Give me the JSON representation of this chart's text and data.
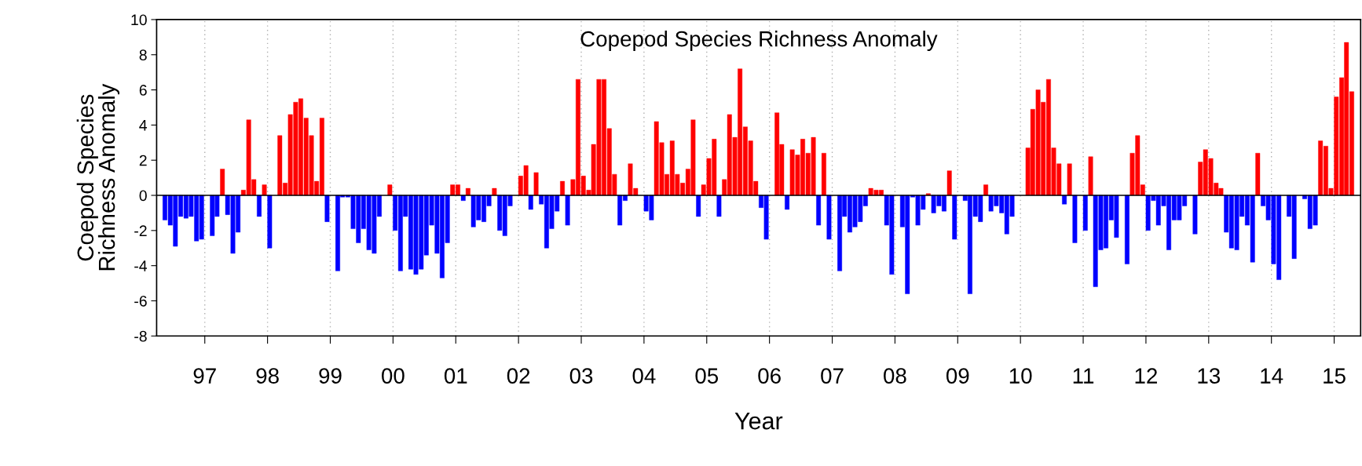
{
  "chart_data": {
    "type": "bar",
    "title": "Copepod Species Richness Anomaly",
    "xlabel": "Year",
    "ylabel": "Coepod Species\nRichness Anomaly",
    "xlim": [
      "1996-03-26",
      "2015-06-04"
    ],
    "xticks": [
      {
        "value": "1997",
        "label": "97"
      },
      {
        "value": "1998",
        "label": "98"
      },
      {
        "value": "1999",
        "label": "99"
      },
      {
        "value": "2000",
        "label": "00"
      },
      {
        "value": "2001",
        "label": "01"
      },
      {
        "value": "2002",
        "label": "02"
      },
      {
        "value": "2003",
        "label": "03"
      },
      {
        "value": "2004",
        "label": "04"
      },
      {
        "value": "2005",
        "label": "05"
      },
      {
        "value": "2006",
        "label": "06"
      },
      {
        "value": "2007",
        "label": "07"
      },
      {
        "value": "2008",
        "label": "08"
      },
      {
        "value": "2009",
        "label": "09"
      },
      {
        "value": "2010",
        "label": "10"
      },
      {
        "value": "2011",
        "label": "11"
      },
      {
        "value": "2012",
        "label": "12"
      },
      {
        "value": "2013",
        "label": "13"
      },
      {
        "value": "2014",
        "label": "14"
      },
      {
        "value": "2015",
        "label": "15"
      }
    ],
    "ylim": [
      -8,
      10
    ],
    "yticks": [
      -8,
      -6,
      -4,
      -2,
      0,
      2,
      4,
      6,
      8,
      10
    ],
    "grid": "x",
    "ref_lines": [
      {
        "axis": "y",
        "value": 0,
        "color": "#000000"
      }
    ],
    "series": [
      {
        "color": "#ff0000",
        "x": [
          "1997-04",
          "1997-08",
          "1997-09",
          "1997-10",
          "1997-12",
          "1998-03",
          "1998-04",
          "1998-05",
          "1998-06",
          "1998-07",
          "1998-08",
          "1998-09",
          "1998-10",
          "1998-11",
          "1999-12",
          "2000-12",
          "2001-01",
          "2001-03",
          "2001-08",
          "2002-01",
          "2002-02",
          "2002-04",
          "2002-09",
          "2002-11",
          "2002-12",
          "2003-01",
          "2003-02",
          "2003-03",
          "2003-04",
          "2003-05",
          "2003-06",
          "2003-07",
          "2003-10",
          "2003-11",
          "2004-03",
          "2004-04",
          "2004-05",
          "2004-06",
          "2004-07",
          "2004-08",
          "2004-09",
          "2004-10",
          "2004-12",
          "2005-01",
          "2005-02",
          "2005-04",
          "2005-05",
          "2005-06",
          "2005-07",
          "2005-08",
          "2005-09",
          "2005-10",
          "2006-02",
          "2006-03",
          "2006-05",
          "2006-06",
          "2006-07",
          "2006-08",
          "2006-09",
          "2006-11",
          "2007-08",
          "2007-09",
          "2007-10",
          "2008-07",
          "2008-11",
          "2009-06",
          "2010-02",
          "2010-03",
          "2010-04",
          "2010-05",
          "2010-06",
          "2010-07",
          "2010-08",
          "2010-10",
          "2011-02",
          "2011-10",
          "2011-11",
          "2011-12",
          "2012-11",
          "2012-12",
          "2013-01",
          "2013-02",
          "2013-03",
          "2013-10",
          "2014-10",
          "2014-11",
          "2014-12",
          "2015-01",
          "2015-02",
          "2015-03",
          "2015-04"
        ],
        "values": [
          1.5,
          0.3,
          4.3,
          0.9,
          0.6,
          3.4,
          0.7,
          4.6,
          5.3,
          5.5,
          4.4,
          3.4,
          0.8,
          4.4,
          0.6,
          0.6,
          0.6,
          0.4,
          0.4,
          1.1,
          1.7,
          1.3,
          0.8,
          0.9,
          6.6,
          1.1,
          0.3,
          2.9,
          6.6,
          6.6,
          3.8,
          1.2,
          1.8,
          0.4,
          4.2,
          3.0,
          1.2,
          3.1,
          1.2,
          0.7,
          1.5,
          4.3,
          0.6,
          2.1,
          3.2,
          0.9,
          4.6,
          3.3,
          7.2,
          3.9,
          3.1,
          0.8,
          4.7,
          2.9,
          2.6,
          2.3,
          3.2,
          2.4,
          3.3,
          2.4,
          0.4,
          0.3,
          0.3,
          0.1,
          1.4,
          0.6,
          2.7,
          4.9,
          6.0,
          5.3,
          6.6,
          2.7,
          1.8,
          1.8,
          2.2,
          2.4,
          3.4,
          0.6,
          1.9,
          2.6,
          2.1,
          0.7,
          0.4,
          2.4,
          3.1,
          2.8,
          0.4,
          5.6,
          6.7,
          8.7,
          5.9
        ]
      },
      {
        "color": "#0000ff",
        "x": [
          "1996-05",
          "1996-06",
          "1996-07",
          "1996-08",
          "1996-09",
          "1996-10",
          "1996-11",
          "1996-12",
          "1997-02",
          "1997-03",
          "1997-05",
          "1997-06",
          "1997-07",
          "1997-11",
          "1998-01",
          "1998-12",
          "1999-02",
          "1999-03",
          "1999-04",
          "1999-05",
          "1999-06",
          "1999-07",
          "1999-08",
          "1999-09",
          "1999-10",
          "2000-01",
          "2000-02",
          "2000-03",
          "2000-04",
          "2000-05",
          "2000-06",
          "2000-07",
          "2000-08",
          "2000-09",
          "2000-10",
          "2000-11",
          "2001-02",
          "2001-04",
          "2001-05",
          "2001-06",
          "2001-07",
          "2001-09",
          "2001-10",
          "2001-11",
          "2002-03",
          "2002-05",
          "2002-06",
          "2002-07",
          "2002-08",
          "2002-10",
          "2003-08",
          "2003-09",
          "2004-01",
          "2004-02",
          "2004-11",
          "2005-03",
          "2005-11",
          "2005-12",
          "2006-04",
          "2006-10",
          "2006-12",
          "2007-02",
          "2007-03",
          "2007-04",
          "2007-05",
          "2007-06",
          "2007-07",
          "2007-11",
          "2007-12",
          "2008-02",
          "2008-03",
          "2008-04",
          "2008-05",
          "2008-06",
          "2008-08",
          "2008-09",
          "2008-10",
          "2008-12",
          "2009-02",
          "2009-03",
          "2009-04",
          "2009-05",
          "2009-07",
          "2009-08",
          "2009-09",
          "2009-10",
          "2009-11",
          "2010-09",
          "2010-11",
          "2011-01",
          "2011-03",
          "2011-04",
          "2011-05",
          "2011-06",
          "2011-07",
          "2011-09",
          "2012-01",
          "2012-02",
          "2012-03",
          "2012-04",
          "2012-05",
          "2012-06",
          "2012-07",
          "2012-08",
          "2012-10",
          "2013-04",
          "2013-05",
          "2013-06",
          "2013-07",
          "2013-08",
          "2013-09",
          "2013-11",
          "2013-12",
          "2014-01",
          "2014-02",
          "2014-04",
          "2014-05",
          "2014-07",
          "2014-08",
          "2014-09"
        ],
        "values": [
          -1.4,
          -1.7,
          -2.9,
          -1.2,
          -1.3,
          -1.2,
          -2.6,
          -2.5,
          -2.3,
          -1.2,
          -1.1,
          -3.3,
          -2.1,
          -1.2,
          -3.0,
          -1.5,
          -4.3,
          -0.1,
          -0.1,
          -1.9,
          -2.7,
          -1.9,
          -3.1,
          -3.3,
          -1.2,
          -2.0,
          -4.3,
          -1.2,
          -4.2,
          -4.5,
          -4.2,
          -3.4,
          -1.7,
          -3.3,
          -4.7,
          -2.7,
          -0.3,
          -1.8,
          -1.4,
          -1.5,
          -0.6,
          -2.0,
          -2.3,
          -0.6,
          -0.8,
          -0.5,
          -3.0,
          -1.9,
          -0.9,
          -1.7,
          -1.7,
          -0.3,
          -0.9,
          -1.4,
          -1.2,
          -1.2,
          -0.7,
          -2.5,
          -0.8,
          -1.7,
          -2.5,
          -4.3,
          -1.2,
          -2.1,
          -1.8,
          -1.5,
          -0.6,
          -1.7,
          -4.5,
          -1.8,
          -5.6,
          -0.1,
          -1.7,
          -0.8,
          -1.0,
          -0.6,
          -0.9,
          -2.5,
          -0.3,
          -5.6,
          -1.2,
          -1.5,
          -0.9,
          -0.6,
          -1.0,
          -2.2,
          -1.2,
          -0.5,
          -2.7,
          -2.0,
          -5.2,
          -3.1,
          -3.0,
          -1.4,
          -2.4,
          -3.9,
          -2.0,
          -0.3,
          -1.7,
          -0.6,
          -3.1,
          -1.4,
          -1.4,
          -0.6,
          -2.2,
          -2.1,
          -3.0,
          -3.1,
          -1.2,
          -1.7,
          -3.8,
          -0.6,
          -1.4,
          -3.9,
          -4.8,
          -1.2,
          -3.6,
          -0.2,
          -1.9,
          -1.7
        ]
      }
    ]
  }
}
